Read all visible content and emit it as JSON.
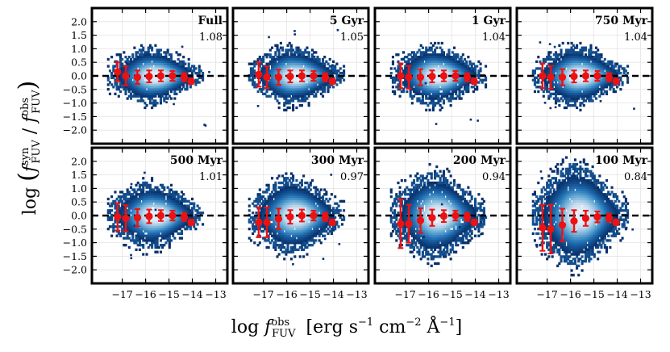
{
  "chart_data": {
    "type": "heatmap",
    "description_kind": "2x4 grid of 2D density histograms with binned median markers and error bars",
    "xlabel": "log f_FUV^obs [erg s^-1 cm^-2 Å^-1]",
    "ylabel": "log ( f_FUV^syn / f_FUV^obs )",
    "xlim": [
      -18.3,
      -12.5
    ],
    "ylim": [
      -2.5,
      2.5
    ],
    "x_ticks": [
      -17,
      -16,
      -15,
      -14,
      -13
    ],
    "x_tick_labels": [
      "−17",
      "−16",
      "−15",
      "−14",
      "−13"
    ],
    "y_ticks": [
      2.0,
      1.5,
      1.0,
      0.5,
      0.0,
      -0.5,
      -1.0,
      -1.5,
      -2.0
    ],
    "y_tick_labels": [
      "2.0",
      "1.5",
      "1.0",
      "0.5",
      "0.0",
      "−0.5",
      "−1.0",
      "−1.5",
      "−2.0"
    ],
    "reference_line_y": 0.0,
    "colormap": [
      "#f1f7ff",
      "#c6dbef",
      "#6baed6",
      "#2171b5",
      "#08306b"
    ],
    "marker_color": "#ee1111",
    "bin_centers": [
      -17.2,
      -16.85,
      -16.35,
      -15.85,
      -15.35,
      -14.85,
      -14.35,
      -14.05
    ],
    "panels": [
      {
        "label": "Full",
        "ratio": "1.08",
        "spread": 0.36,
        "seed": 11,
        "medians": [
          0.15,
          0.0,
          -0.05,
          -0.02,
          0.0,
          0.0,
          -0.05,
          -0.2
        ],
        "errors": [
          0.35,
          0.35,
          0.25,
          0.22,
          0.2,
          0.18,
          0.15,
          0.1
        ]
      },
      {
        "label": "5 Gyr",
        "ratio": "1.05",
        "spread": 0.37,
        "seed": 23,
        "medians": [
          0.05,
          -0.05,
          -0.05,
          -0.02,
          0.0,
          0.0,
          -0.05,
          -0.2
        ],
        "errors": [
          0.45,
          0.4,
          0.28,
          0.22,
          0.2,
          0.18,
          0.15,
          0.1
        ]
      },
      {
        "label": "1 Gyr",
        "ratio": "1.04",
        "spread": 0.38,
        "seed": 37,
        "medians": [
          0.0,
          -0.05,
          -0.05,
          -0.02,
          0.0,
          0.0,
          -0.05,
          -0.2
        ],
        "errors": [
          0.45,
          0.42,
          0.3,
          0.22,
          0.2,
          0.18,
          0.15,
          0.1
        ]
      },
      {
        "label": "750 Myr",
        "ratio": "1.04",
        "spread": 0.38,
        "seed": 41,
        "medians": [
          0.0,
          -0.05,
          -0.05,
          -0.02,
          0.0,
          0.0,
          -0.05,
          -0.2
        ],
        "errors": [
          0.45,
          0.42,
          0.3,
          0.22,
          0.2,
          0.18,
          0.15,
          0.1
        ]
      },
      {
        "label": "500 Myr",
        "ratio": "1.01",
        "spread": 0.42,
        "seed": 53,
        "medians": [
          -0.05,
          -0.1,
          -0.08,
          -0.03,
          0.0,
          0.0,
          -0.05,
          -0.25
        ],
        "errors": [
          0.5,
          0.48,
          0.32,
          0.25,
          0.2,
          0.18,
          0.15,
          0.1
        ]
      },
      {
        "label": "300 Myr",
        "ratio": "0.97",
        "spread": 0.48,
        "seed": 67,
        "medians": [
          -0.25,
          -0.25,
          -0.12,
          -0.05,
          0.0,
          0.0,
          -0.05,
          -0.25
        ],
        "errors": [
          0.55,
          0.55,
          0.38,
          0.25,
          0.22,
          0.18,
          0.15,
          0.1
        ]
      },
      {
        "label": "200 Myr",
        "ratio": "0.94",
        "spread": 0.55,
        "seed": 79,
        "medians": [
          -0.3,
          -0.3,
          -0.18,
          -0.08,
          -0.02,
          0.0,
          -0.05,
          -0.25
        ],
        "errors": [
          0.9,
          0.7,
          0.45,
          0.3,
          0.22,
          0.18,
          0.15,
          0.1
        ]
      },
      {
        "label": "100 Myr",
        "ratio": "0.84",
        "spread": 0.65,
        "seed": 97,
        "medians": [
          -0.45,
          -0.5,
          -0.35,
          -0.2,
          -0.1,
          -0.05,
          -0.08,
          -0.25
        ],
        "errors": [
          0.85,
          0.9,
          0.6,
          0.4,
          0.28,
          0.2,
          0.15,
          0.1
        ]
      }
    ]
  }
}
